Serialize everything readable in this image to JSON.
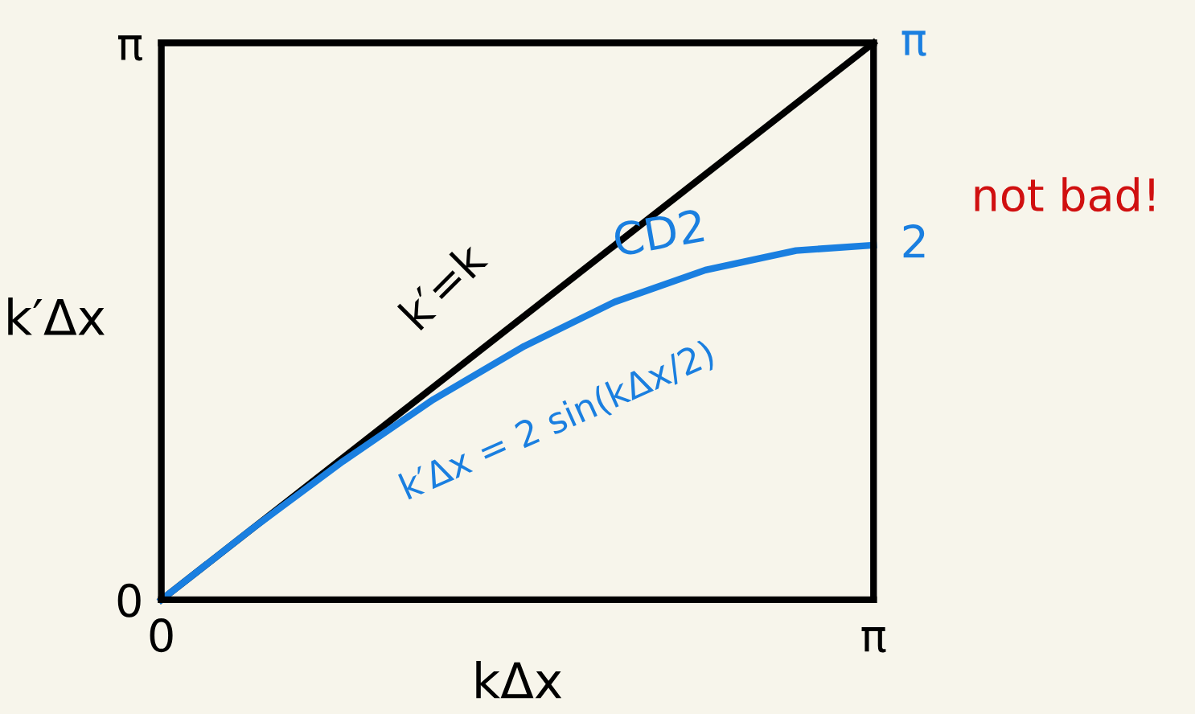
{
  "chart_data": {
    "type": "line",
    "xlabel": "kΔx",
    "ylabel": "k′Δx",
    "xlim": [
      0,
      3.1416
    ],
    "ylim": [
      0,
      3.1416
    ],
    "xticks": [
      0,
      {
        "value": 3.1416,
        "label": "π"
      }
    ],
    "yticks": [
      0,
      {
        "value": 3.1416,
        "label": "π"
      }
    ],
    "series": [
      {
        "name": "k′=k",
        "color": "#000000",
        "x": [
          0,
          3.1416
        ],
        "values": [
          0,
          3.1416
        ]
      },
      {
        "name": "CD2",
        "color": "#1a7fe0",
        "x": [
          0,
          0.4,
          0.8,
          1.2,
          1.6,
          2.0,
          2.4,
          2.8,
          3.1416
        ],
        "values": [
          0,
          0.4,
          0.78,
          1.13,
          1.43,
          1.68,
          1.86,
          1.97,
          2.0
        ]
      }
    ],
    "annotations": [
      "k′Δx = 2 sin(kΔx/2)",
      {
        "text": "π",
        "x": 3.1416,
        "y": 3.1416
      },
      {
        "text": "2",
        "x": 3.1416,
        "y": 2.0
      },
      "not bad!"
    ],
    "legend": false,
    "marker": "none",
    "line_style": "solid"
  }
}
